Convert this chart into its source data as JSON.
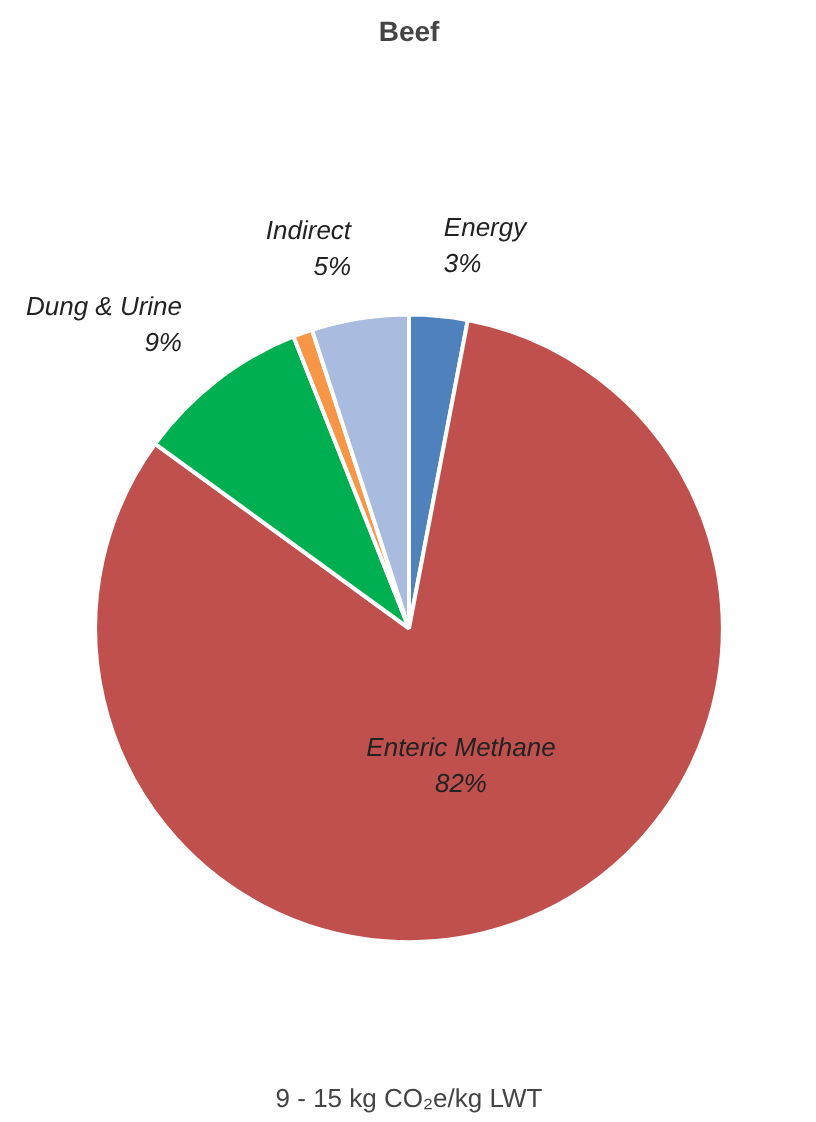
{
  "chart_data": {
    "type": "pie",
    "title": "Beef",
    "categories": [
      "Energy",
      "Enteric Methane",
      "Dung & Urine",
      null,
      "Indirect"
    ],
    "values": [
      3,
      82,
      9,
      1,
      5
    ],
    "colors": [
      "#4f81bd",
      "#c0504d",
      "#00b050",
      "#f79646",
      "#a9bbde"
    ],
    "value_labels": [
      "3%",
      "82%",
      "9%",
      null,
      "5%"
    ],
    "annotations": [
      "9 - 15 kg CO₂e/kg LWT"
    ]
  }
}
